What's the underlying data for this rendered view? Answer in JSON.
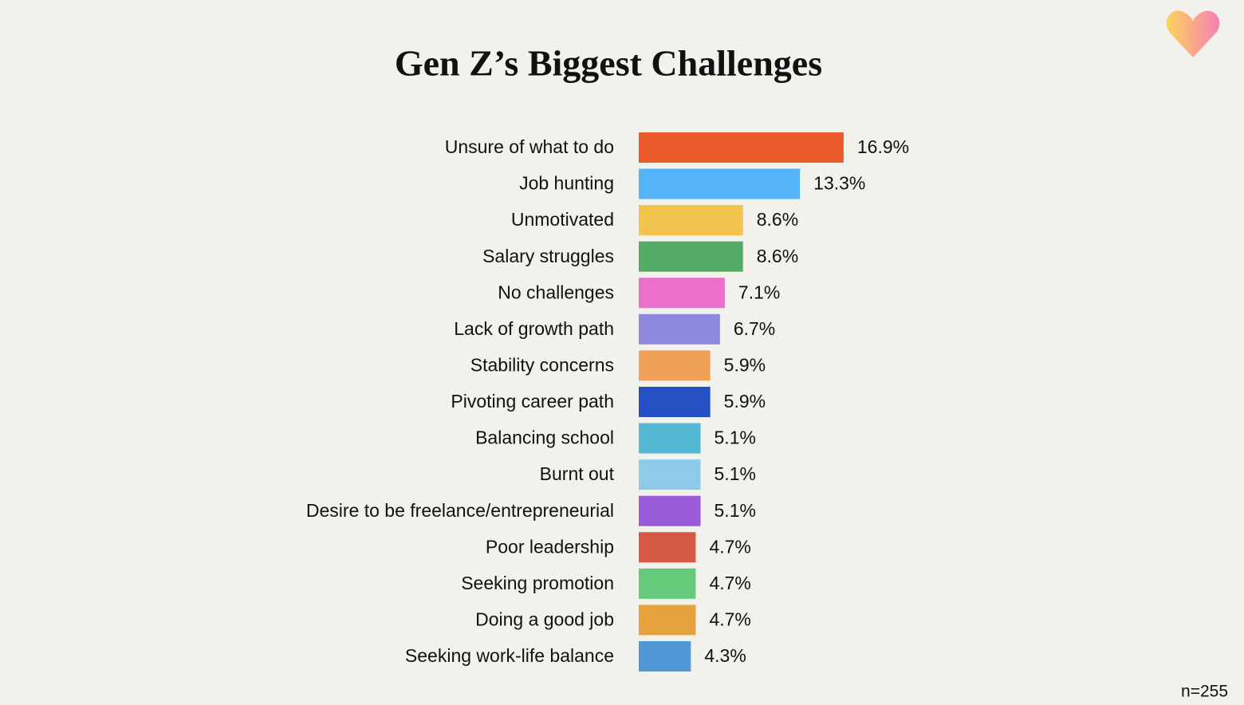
{
  "chart_data": {
    "type": "hbar",
    "title": "Gen Z’s Biggest Challenges",
    "categories": [
      "Unsure of what to do",
      "Job hunting",
      "Unmotivated",
      "Salary struggles",
      "No challenges",
      "Lack of growth path",
      "Stability concerns",
      "Pivoting career path",
      "Balancing school",
      "Burnt out",
      "Desire to be freelance/entrepreneurial",
      "Poor leadership",
      "Seeking promotion",
      "Doing a good job",
      "Seeking work-life balance"
    ],
    "values": [
      16.9,
      13.3,
      8.6,
      8.6,
      7.1,
      6.7,
      5.9,
      5.9,
      5.1,
      5.1,
      5.1,
      4.7,
      4.7,
      4.7,
      4.3
    ],
    "value_labels": [
      "16.9%",
      "13.3%",
      "8.6%",
      "8.6%",
      "7.1%",
      "6.7%",
      "5.9%",
      "5.9%",
      "5.1%",
      "5.1%",
      "5.1%",
      "4.7%",
      "4.7%",
      "4.7%",
      "4.3%"
    ],
    "colors": [
      "#ec5a2b",
      "#55b4f8",
      "#f2c44e",
      "#55ab66",
      "#ec6fca",
      "#8e88df",
      "#efa257",
      "#2450c4",
      "#55b9d6",
      "#8ecbea",
      "#9b5bd9",
      "#d65845",
      "#66ca7b",
      "#e6a23c",
      "#5098d6"
    ],
    "annotation": "n=255"
  }
}
